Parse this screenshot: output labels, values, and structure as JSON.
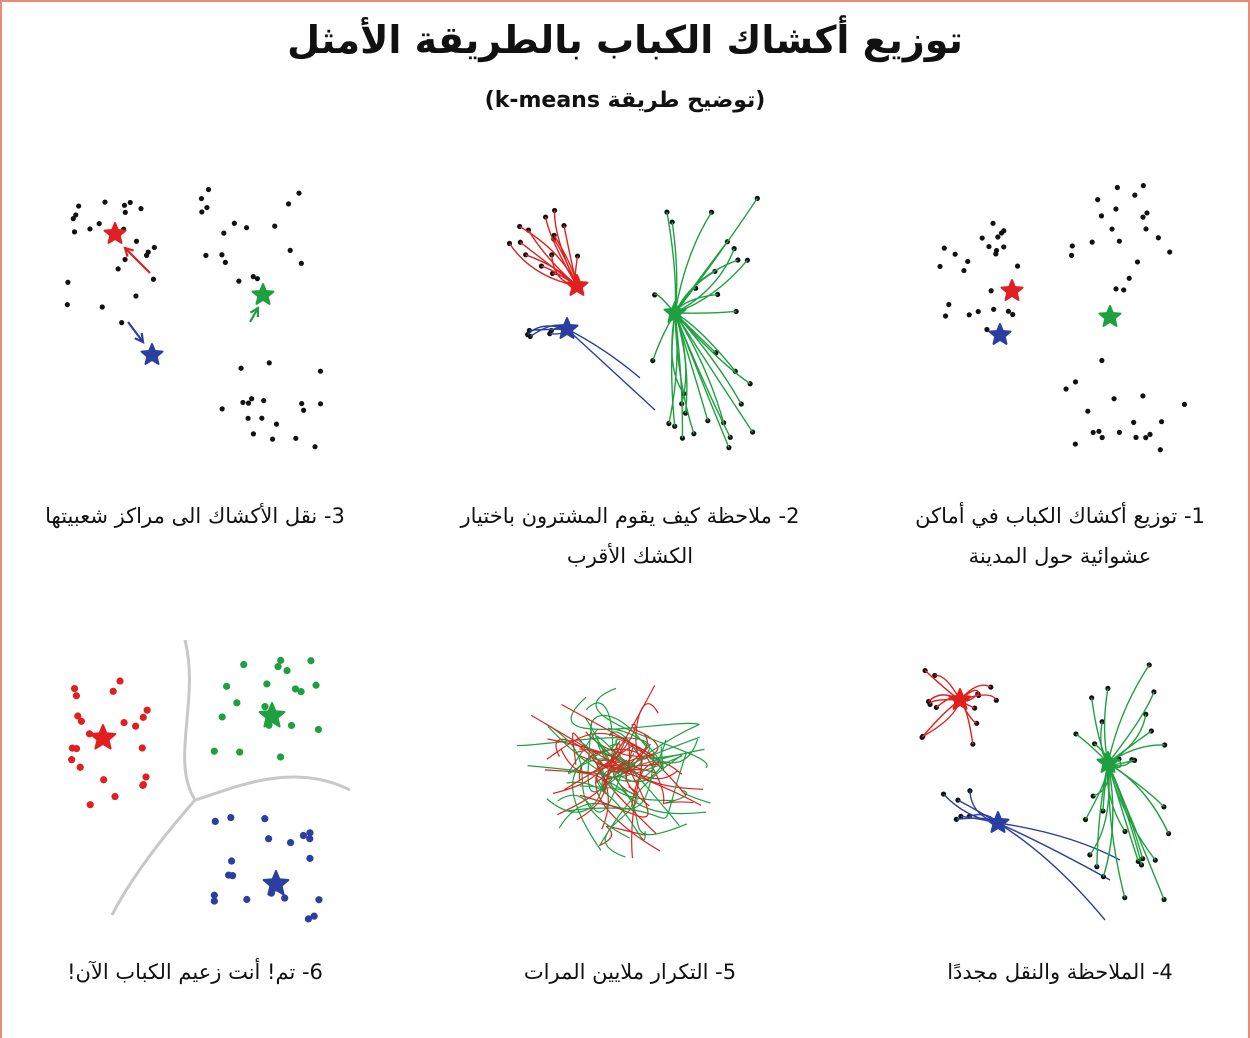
{
  "header": {
    "title": "توزيع أكشاك الكباب بالطريقة الأمثل",
    "subtitle": "(توضيح طريقة k-means)"
  },
  "panels": [
    {
      "caption": "1- توزيع أكشاك الكباب في أماكن عشوائية حول المدينة"
    },
    {
      "caption": "2- ملاحظة كيف يقوم المشترون باختيار الكشك الأقرب"
    },
    {
      "caption": "3- نقل الأكشاك الى مراكز شعبيتها"
    },
    {
      "caption": "4- الملاحظة والنقل مجددًا"
    },
    {
      "caption": "5- التكرار ملايين المرات"
    },
    {
      "caption": "6- تم! أنت زعيم الكباب الآن!"
    }
  ]
}
